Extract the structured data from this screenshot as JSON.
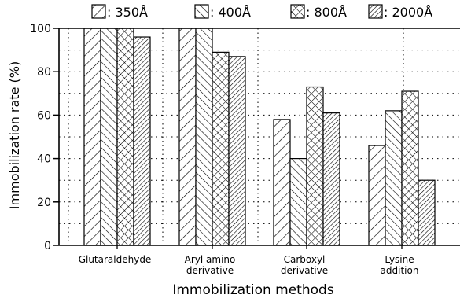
{
  "chart_data": {
    "type": "bar",
    "title": "",
    "xlabel": "Immobilization methods",
    "ylabel": "Immobilization rate  (%)",
    "ylim": [
      0,
      100
    ],
    "yticks": [
      "0",
      "20",
      "40",
      "60",
      "80",
      "100"
    ],
    "categories": [
      "Glutaraldehyde",
      "Aryl amino derivative",
      "Carboxyl derivative",
      "Lysine addition"
    ],
    "category_labels": [
      [
        "Glutaraldehyde"
      ],
      [
        "Aryl amino",
        "derivative"
      ],
      [
        "Carboxyl",
        "derivative"
      ],
      [
        "Lysine",
        "addition"
      ]
    ],
    "series": [
      {
        "name": ": 350Å",
        "values": [
          100,
          100,
          58,
          46
        ],
        "pattern": "diag-forward-sparse"
      },
      {
        "name": ": 400Å",
        "values": [
          100,
          100,
          40,
          62
        ],
        "pattern": "diag-back"
      },
      {
        "name": ": 800Å",
        "values": [
          100,
          89,
          73,
          71
        ],
        "pattern": "crosshatch"
      },
      {
        "name": ": 2000Å",
        "values": [
          96,
          87,
          61,
          30
        ],
        "pattern": "diag-forward-dense"
      }
    ],
    "grid": true,
    "grid_style": "dotted",
    "legend": "top",
    "colors": {
      "ink": "#000000",
      "background": "#ffffff"
    }
  }
}
